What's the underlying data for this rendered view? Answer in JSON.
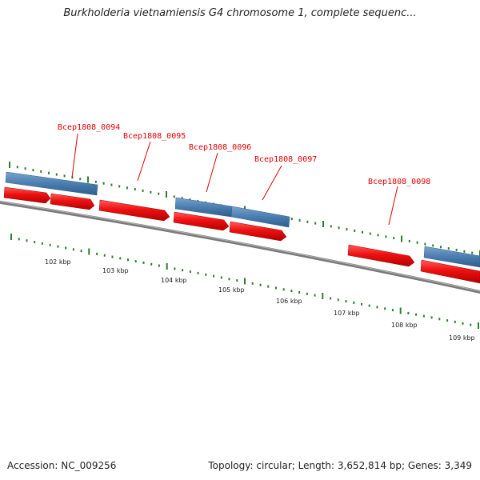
{
  "header": {
    "title": "Burkholderia vietnamiensis G4 chromosome 1, complete sequenc..."
  },
  "footer": {
    "accession": "Accession: NC_009256",
    "summary": "Topology: circular; Length: 3,652,814 bp; Genes: 3,349"
  },
  "map": {
    "colors": {
      "backbone": "#8a8a8a",
      "gene_forward": "#ee1111",
      "gene_blue": "#4a7db0",
      "tick": "#2e7d2e",
      "label": "#e00000"
    },
    "gene_labels": [
      {
        "id": "Bcep1808_0094",
        "text": "Bcep1808_0094"
      },
      {
        "id": "Bcep1808_0095",
        "text": "Bcep1808_0095"
      },
      {
        "id": "Bcep1808_0096",
        "text": "Bcep1808_0096"
      },
      {
        "id": "Bcep1808_0097",
        "text": "Bcep1808_0097"
      },
      {
        "id": "Bcep1808_0098",
        "text": "Bcep1808_0098"
      }
    ],
    "kbp_labels": [
      "102 kbp",
      "103 kbp",
      "104 kbp",
      "105 kbp",
      "106 kbp",
      "107 kbp",
      "108 kbp",
      "109 kbp"
    ]
  }
}
